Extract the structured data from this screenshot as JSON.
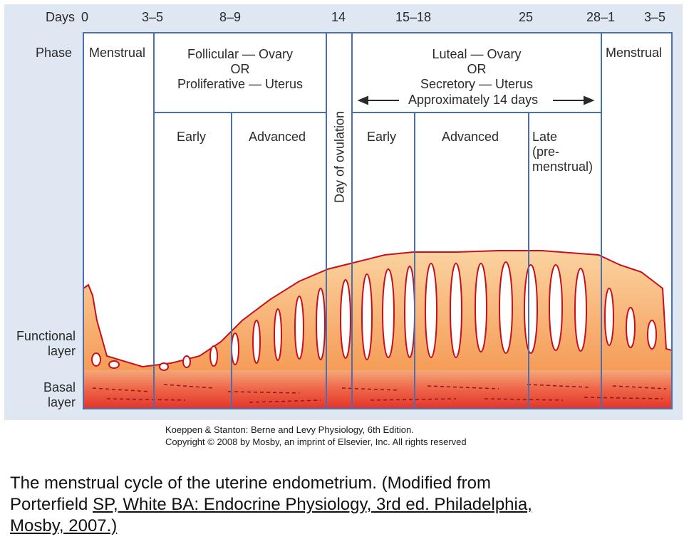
{
  "days": {
    "label": "Days",
    "ticks": [
      "0",
      "3–5",
      "8–9",
      "14",
      "15–18",
      "25",
      "28–1",
      "3–5"
    ]
  },
  "phase": {
    "label": "Phase",
    "menstrual_left": "Menstrual",
    "follicular": [
      "Follicular — Ovary",
      "OR",
      "Proliferative — Uterus"
    ],
    "luteal": [
      "Luteal — Ovary",
      "OR",
      "Secretory — Uterus"
    ],
    "luteal_duration": "Approximately 14 days",
    "menstrual_right": "Menstrual"
  },
  "subphases": {
    "early_1": "Early",
    "advanced_1": "Advanced",
    "ovulation": "Day of ovulation",
    "early_2": "Early",
    "advanced_2": "Advanced",
    "late": [
      "Late",
      "(pre-",
      "menstrual)"
    ]
  },
  "layers": {
    "functional": [
      "Functional",
      "layer"
    ],
    "basal": [
      "Basal",
      "layer"
    ]
  },
  "credit": {
    "line1": "Koeppen & Stanton: Berne and Levy Physiology, 6th Edition.",
    "line2": "Copyright © 2008 by Mosby, an imprint of Elsevier, Inc. All rights reserved"
  },
  "caption": {
    "line1": "The menstrual cycle of the uterine endometrium. (Modified from",
    "line2a": "Porterfield ",
    "line2b": "SP, White BA: Endocrine Physiology, 3rd ed. Philadelphia,",
    "line3": "Mosby, 2007.)"
  },
  "colors": {
    "background_panel": "#dfe8f2",
    "grid_lines": "#4a6fb0",
    "tissue_light": "#f7b56e",
    "tissue_dark": "#e8362a",
    "gland_outline": "#c8101a"
  }
}
